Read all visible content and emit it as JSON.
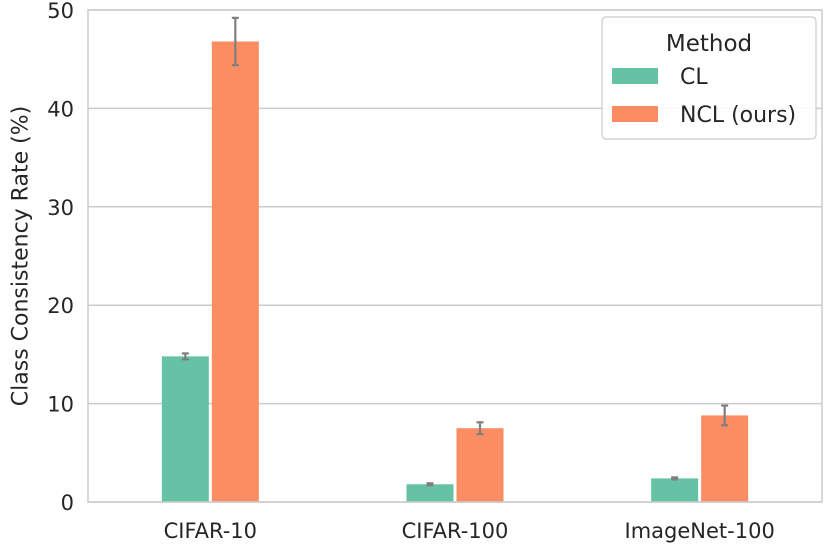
{
  "chart_data": {
    "type": "bar",
    "categories": [
      "CIFAR-10",
      "CIFAR-100",
      "ImageNet-100"
    ],
    "series": [
      {
        "name": "CL",
        "values": [
          14.8,
          1.8,
          2.4
        ],
        "err_low": [
          14.5,
          1.7,
          2.3
        ],
        "err_high": [
          15.1,
          1.9,
          2.5
        ],
        "color": "#66c2a5"
      },
      {
        "name": "NCL (ours)",
        "values": [
          46.8,
          7.5,
          8.8
        ],
        "err_low": [
          44.4,
          6.9,
          7.8
        ],
        "err_high": [
          49.2,
          8.1,
          9.8
        ],
        "color": "#fc8d62"
      }
    ],
    "ylabel": "Class Consistency Rate (%)",
    "xlabel": "",
    "ylim": [
      0,
      50
    ],
    "yticks": [
      0,
      10,
      20,
      30,
      40,
      50
    ],
    "grid": true,
    "legend": {
      "title": "Method",
      "placement": "top-right"
    }
  }
}
